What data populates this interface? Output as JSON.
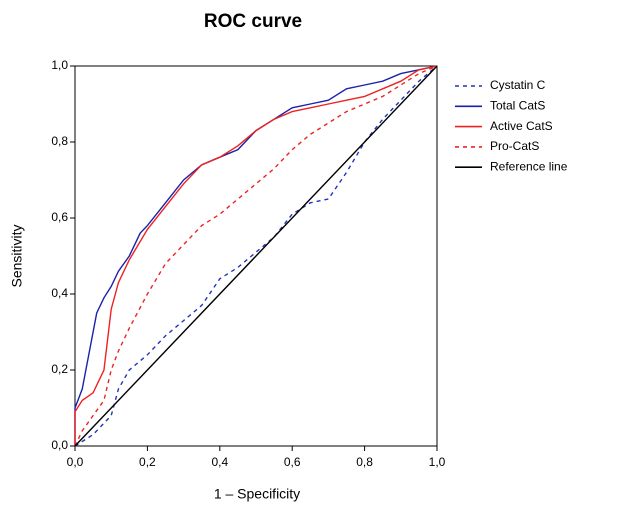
{
  "chart_data": {
    "type": "line",
    "title": "ROC curve",
    "x_label": "1 – Specificity",
    "y_label": "Sensitivity",
    "xlim": [
      0,
      1
    ],
    "ylim": [
      0,
      1
    ],
    "xticks": [
      {
        "value": 0,
        "label": "0,0"
      },
      {
        "value": 0.2,
        "label": "0,2"
      },
      {
        "value": 0.4,
        "label": "0,4"
      },
      {
        "value": 0.6,
        "label": "0,6"
      },
      {
        "value": 0.8,
        "label": "0,8"
      },
      {
        "value": 1,
        "label": "1,0"
      }
    ],
    "yticks": [
      {
        "value": 0,
        "label": "0,0"
      },
      {
        "value": 0.2,
        "label": "0,2"
      },
      {
        "value": 0.4,
        "label": "0,4"
      },
      {
        "value": 0.6,
        "label": "0,6"
      },
      {
        "value": 0.8,
        "label": "0,8"
      },
      {
        "value": 1,
        "label": "1,0"
      }
    ],
    "grid": false,
    "legend": "right",
    "series": [
      {
        "name": "Cystatin C",
        "color": "#2233bb",
        "dashed": true,
        "x": [
          0,
          0.05,
          0.1,
          0.12,
          0.15,
          0.2,
          0.25,
          0.3,
          0.35,
          0.4,
          0.45,
          0.5,
          0.55,
          0.6,
          0.65,
          0.7,
          0.75,
          0.8,
          0.85,
          0.9,
          0.95,
          1
        ],
        "values": [
          0,
          0.03,
          0.08,
          0.15,
          0.2,
          0.24,
          0.29,
          0.33,
          0.37,
          0.44,
          0.47,
          0.51,
          0.55,
          0.61,
          0.64,
          0.65,
          0.72,
          0.8,
          0.86,
          0.91,
          0.96,
          1
        ]
      },
      {
        "name": "Total CatS",
        "color": "#1a22aa",
        "dashed": false,
        "x": [
          0,
          0,
          0.02,
          0.04,
          0.06,
          0.08,
          0.1,
          0.12,
          0.15,
          0.18,
          0.2,
          0.25,
          0.3,
          0.35,
          0.4,
          0.45,
          0.5,
          0.55,
          0.6,
          0.65,
          0.7,
          0.75,
          0.8,
          0.85,
          0.9,
          0.95,
          1
        ],
        "values": [
          0,
          0.1,
          0.15,
          0.25,
          0.35,
          0.39,
          0.42,
          0.46,
          0.5,
          0.56,
          0.58,
          0.64,
          0.7,
          0.74,
          0.76,
          0.78,
          0.83,
          0.86,
          0.89,
          0.9,
          0.91,
          0.94,
          0.95,
          0.96,
          0.98,
          0.99,
          1
        ]
      },
      {
        "name": "Active CatS",
        "color": "#ee2222",
        "dashed": false,
        "x": [
          0,
          0,
          0.02,
          0.05,
          0.08,
          0.1,
          0.12,
          0.15,
          0.2,
          0.25,
          0.3,
          0.35,
          0.4,
          0.45,
          0.5,
          0.55,
          0.6,
          0.65,
          0.7,
          0.75,
          0.8,
          0.85,
          0.9,
          0.95,
          1
        ],
        "values": [
          0,
          0.09,
          0.12,
          0.14,
          0.2,
          0.36,
          0.43,
          0.49,
          0.57,
          0.63,
          0.69,
          0.74,
          0.76,
          0.79,
          0.83,
          0.86,
          0.88,
          0.89,
          0.9,
          0.91,
          0.92,
          0.94,
          0.96,
          0.99,
          1
        ]
      },
      {
        "name": "Pro-CatS",
        "color": "#ee2222",
        "dashed": true,
        "x": [
          0,
          0.02,
          0.05,
          0.08,
          0.1,
          0.12,
          0.15,
          0.2,
          0.25,
          0.3,
          0.35,
          0.4,
          0.45,
          0.5,
          0.55,
          0.6,
          0.65,
          0.7,
          0.75,
          0.8,
          0.85,
          0.9,
          0.95,
          1
        ],
        "values": [
          0,
          0.04,
          0.08,
          0.12,
          0.2,
          0.25,
          0.31,
          0.4,
          0.48,
          0.53,
          0.58,
          0.61,
          0.65,
          0.69,
          0.73,
          0.78,
          0.82,
          0.85,
          0.88,
          0.9,
          0.92,
          0.95,
          0.98,
          1
        ]
      },
      {
        "name": "Reference line",
        "color": "#000000",
        "dashed": false,
        "x": [
          0,
          1
        ],
        "values": [
          0,
          1
        ]
      }
    ]
  }
}
